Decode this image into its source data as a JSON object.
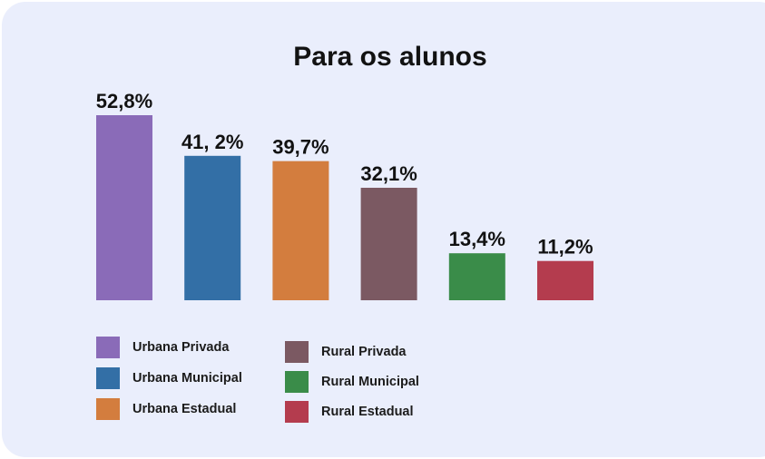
{
  "chart_data": {
    "type": "bar",
    "title": "Para os alunos",
    "categories": [
      "Urbana Privada",
      "Urbana Municipal",
      "Urbana Estadual",
      "Rural Privada",
      "Rural Municipal",
      "Rural Estadual"
    ],
    "values": [
      52.8,
      41.2,
      39.7,
      32.1,
      13.4,
      11.2
    ],
    "data_labels": [
      "52,8%",
      "41, 2%",
      "39,7%",
      "32,1%",
      "13,4%",
      "11,2%"
    ],
    "colors": [
      "#8a6bb8",
      "#336fa6",
      "#d37d3e",
      "#7b5962",
      "#3a8c49",
      "#b43c4e"
    ],
    "ylim": [
      0,
      52.8
    ],
    "grid": false,
    "legend_position": "bottom-left"
  }
}
